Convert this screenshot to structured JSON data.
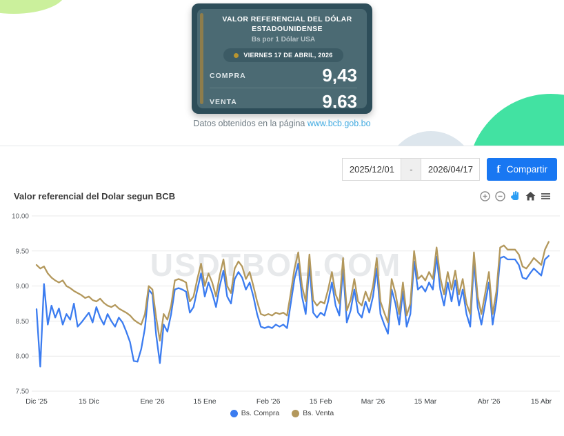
{
  "hero": {
    "card": {
      "title": "VALOR REFERENCIAL DEL DÓLAR ESTADOUNIDENSE",
      "subtitle": "Bs por 1 Dólar USA",
      "date_label": "VIERNES 17 DE ABRIL, 2026",
      "rows": [
        {
          "label": "COMPRA",
          "value": "9,43"
        },
        {
          "label": "VENTA",
          "value": "9,63"
        }
      ]
    },
    "source_caption": "Datos obtenidos en la página",
    "source_link": "www.bcb.gob.bo"
  },
  "controls": {
    "date_from": "2025/12/01",
    "date_separator": "-",
    "date_to": "2026/04/17",
    "share_icon": "f",
    "share_label": "Compartir"
  },
  "chart": {
    "title": "Valor referencial del Dolar segun BCB",
    "watermark": "USDTBOL.COM",
    "toolbar_icons": [
      "zoom-in",
      "zoom-out",
      "pan",
      "home",
      "menu"
    ]
  },
  "colors": {
    "card_outer": "#2d4d59",
    "card_inner": "#4b6a73",
    "gold_accent": "#8e7d4b",
    "facebook_blue": "#1877f2",
    "link_blue": "#3fa9e0",
    "compra_blue": "#3b7cf0",
    "venta_tan": "#b3985c",
    "green_circle": "#42e2a2",
    "lime_arc": "#cbf09c"
  },
  "chart_data": {
    "type": "line",
    "title": "Valor referencial del Dolar segun BCB",
    "xlabel": "",
    "ylabel": "",
    "ylim": [
      7.5,
      10.0
    ],
    "y_ticks": [
      7.5,
      8.0,
      8.5,
      9.0,
      9.5,
      10.0
    ],
    "grid": true,
    "legend_position": "bottom",
    "x_start_date": "2025/12/01",
    "x_end_date": "2026/04/17",
    "x_tick_labels": [
      "Dic '25",
      "15 Dic",
      "Ene '26",
      "15 Ene",
      "Feb '26",
      "15 Feb",
      "Mar '26",
      "15 Mar",
      "Abr '26",
      "15 Abr"
    ],
    "x_tick_day_index": [
      0,
      14,
      31,
      45,
      62,
      76,
      90,
      104,
      121,
      135
    ],
    "series": [
      {
        "name": "Bs. Compra",
        "color": "#3b7cf0",
        "values": [
          8.67,
          7.85,
          9.03,
          8.45,
          8.72,
          8.55,
          8.68,
          8.45,
          8.6,
          8.52,
          8.75,
          8.42,
          8.48,
          8.55,
          8.62,
          8.48,
          8.7,
          8.55,
          8.45,
          8.6,
          8.5,
          8.42,
          8.55,
          8.48,
          8.35,
          8.2,
          7.93,
          7.92,
          8.1,
          8.4,
          8.95,
          8.88,
          8.3,
          7.9,
          8.45,
          8.35,
          8.6,
          8.95,
          8.97,
          8.95,
          8.92,
          8.62,
          8.7,
          8.95,
          9.18,
          8.85,
          9.05,
          8.9,
          8.7,
          9.0,
          9.22,
          8.85,
          8.75,
          9.1,
          9.2,
          9.12,
          8.95,
          9.05,
          8.85,
          8.6,
          8.42,
          8.4,
          8.42,
          8.4,
          8.45,
          8.42,
          8.45,
          8.4,
          8.75,
          9.1,
          9.32,
          8.85,
          8.6,
          9.3,
          8.62,
          8.55,
          8.62,
          8.58,
          8.78,
          9.05,
          8.72,
          8.58,
          9.25,
          8.48,
          8.65,
          8.95,
          8.62,
          8.55,
          8.78,
          8.62,
          8.85,
          9.25,
          8.6,
          8.45,
          8.32,
          8.95,
          8.75,
          8.45,
          8.92,
          8.42,
          8.6,
          9.35,
          8.95,
          9.0,
          8.92,
          9.05,
          8.95,
          9.42,
          8.95,
          8.72,
          9.05,
          8.78,
          9.08,
          8.72,
          8.95,
          8.6,
          8.42,
          9.35,
          8.7,
          8.45,
          8.75,
          9.05,
          8.45,
          8.78,
          9.4,
          9.42,
          9.38,
          9.38,
          9.38,
          9.3,
          9.12,
          9.1,
          9.18,
          9.25,
          9.2,
          9.15,
          9.38,
          9.43
        ]
      },
      {
        "name": "Bs. Venta",
        "color": "#b3985c",
        "values": [
          9.3,
          9.25,
          9.28,
          9.18,
          9.12,
          9.08,
          9.05,
          9.08,
          9.0,
          8.97,
          8.93,
          8.9,
          8.87,
          8.83,
          8.85,
          8.8,
          8.78,
          8.82,
          8.76,
          8.72,
          8.7,
          8.73,
          8.68,
          8.65,
          8.62,
          8.58,
          8.52,
          8.48,
          8.45,
          8.6,
          9.0,
          8.95,
          8.55,
          8.22,
          8.6,
          8.52,
          8.72,
          9.08,
          9.1,
          9.08,
          9.05,
          8.78,
          8.85,
          9.1,
          9.32,
          9.0,
          9.18,
          9.05,
          8.85,
          9.15,
          9.38,
          9.0,
          8.9,
          9.25,
          9.35,
          9.28,
          9.1,
          9.2,
          9.0,
          8.78,
          8.6,
          8.58,
          8.6,
          8.58,
          8.62,
          8.6,
          8.62,
          8.58,
          8.9,
          9.25,
          9.48,
          9.0,
          8.78,
          9.45,
          8.8,
          8.72,
          8.78,
          8.75,
          8.95,
          9.2,
          8.88,
          8.75,
          9.4,
          8.65,
          8.8,
          9.1,
          8.78,
          8.72,
          8.92,
          8.78,
          9.0,
          9.4,
          8.78,
          8.62,
          8.48,
          9.1,
          8.9,
          8.6,
          9.05,
          8.58,
          8.75,
          9.5,
          9.1,
          9.15,
          9.08,
          9.2,
          9.1,
          9.55,
          9.12,
          8.88,
          9.2,
          8.95,
          9.22,
          8.88,
          9.1,
          8.75,
          8.6,
          9.48,
          8.85,
          8.6,
          8.9,
          9.2,
          8.6,
          8.92,
          9.55,
          9.58,
          9.52,
          9.52,
          9.52,
          9.45,
          9.28,
          9.25,
          9.32,
          9.4,
          9.35,
          9.3,
          9.52,
          9.63
        ]
      }
    ]
  }
}
